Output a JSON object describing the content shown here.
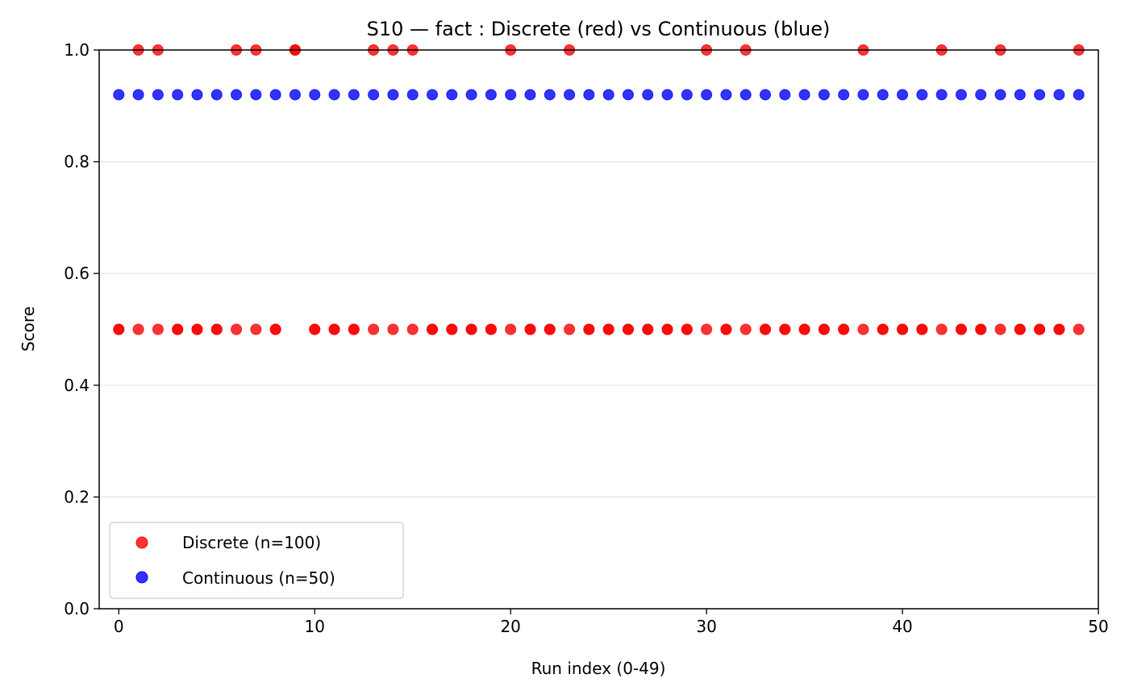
{
  "chart_data": {
    "type": "scatter",
    "title": "S10 — fact : Discrete (red) vs Continuous (blue)",
    "xlabel": "Run index (0-49)",
    "ylabel": "Score",
    "xlim": [
      -1,
      50
    ],
    "ylim": [
      0,
      1
    ],
    "xticks": [
      "0",
      "10",
      "20",
      "30",
      "40",
      "50"
    ],
    "yticks": [
      "0.0",
      "0.2",
      "0.4",
      "0.6",
      "0.8",
      "1.0"
    ],
    "grid": "y-only",
    "legend_position": "lower-left",
    "series": [
      {
        "name": "Discrete (n=100)",
        "color": "#ff0000",
        "points": [
          [
            0,
            0.5
          ],
          [
            0,
            0.5
          ],
          [
            1,
            1.0
          ],
          [
            1,
            0.5
          ],
          [
            2,
            1.0
          ],
          [
            2,
            0.5
          ],
          [
            3,
            0.5
          ],
          [
            3,
            0.5
          ],
          [
            4,
            0.5
          ],
          [
            4,
            0.5
          ],
          [
            5,
            0.5
          ],
          [
            5,
            0.5
          ],
          [
            6,
            1.0
          ],
          [
            6,
            0.5
          ],
          [
            7,
            1.0
          ],
          [
            7,
            0.5
          ],
          [
            8,
            0.5
          ],
          [
            8,
            0.5
          ],
          [
            9,
            1.0
          ],
          [
            9,
            1.0
          ],
          [
            10,
            0.5
          ],
          [
            10,
            0.5
          ],
          [
            11,
            0.5
          ],
          [
            11,
            0.5
          ],
          [
            12,
            0.5
          ],
          [
            12,
            0.5
          ],
          [
            13,
            1.0
          ],
          [
            13,
            0.5
          ],
          [
            14,
            1.0
          ],
          [
            14,
            0.5
          ],
          [
            15,
            1.0
          ],
          [
            15,
            0.5
          ],
          [
            16,
            0.5
          ],
          [
            16,
            0.5
          ],
          [
            17,
            0.5
          ],
          [
            17,
            0.5
          ],
          [
            18,
            0.5
          ],
          [
            18,
            0.5
          ],
          [
            19,
            0.5
          ],
          [
            19,
            0.5
          ],
          [
            20,
            1.0
          ],
          [
            20,
            0.5
          ],
          [
            21,
            0.5
          ],
          [
            21,
            0.5
          ],
          [
            22,
            0.5
          ],
          [
            22,
            0.5
          ],
          [
            23,
            1.0
          ],
          [
            23,
            0.5
          ],
          [
            24,
            0.5
          ],
          [
            24,
            0.5
          ],
          [
            25,
            0.5
          ],
          [
            25,
            0.5
          ],
          [
            26,
            0.5
          ],
          [
            26,
            0.5
          ],
          [
            27,
            0.5
          ],
          [
            27,
            0.5
          ],
          [
            28,
            0.5
          ],
          [
            28,
            0.5
          ],
          [
            29,
            0.5
          ],
          [
            29,
            0.5
          ],
          [
            30,
            1.0
          ],
          [
            30,
            0.5
          ],
          [
            31,
            0.5
          ],
          [
            31,
            0.5
          ],
          [
            32,
            1.0
          ],
          [
            32,
            0.5
          ],
          [
            33,
            0.5
          ],
          [
            33,
            0.5
          ],
          [
            34,
            0.5
          ],
          [
            34,
            0.5
          ],
          [
            35,
            0.5
          ],
          [
            35,
            0.5
          ],
          [
            36,
            0.5
          ],
          [
            36,
            0.5
          ],
          [
            37,
            0.5
          ],
          [
            37,
            0.5
          ],
          [
            38,
            1.0
          ],
          [
            38,
            0.5
          ],
          [
            39,
            0.5
          ],
          [
            39,
            0.5
          ],
          [
            40,
            0.5
          ],
          [
            40,
            0.5
          ],
          [
            41,
            0.5
          ],
          [
            41,
            0.5
          ],
          [
            42,
            1.0
          ],
          [
            42,
            0.5
          ],
          [
            43,
            0.5
          ],
          [
            43,
            0.5
          ],
          [
            44,
            0.5
          ],
          [
            44,
            0.5
          ],
          [
            45,
            1.0
          ],
          [
            45,
            0.5
          ],
          [
            46,
            0.5
          ],
          [
            46,
            0.5
          ],
          [
            47,
            0.5
          ],
          [
            47,
            0.5
          ],
          [
            48,
            0.5
          ],
          [
            48,
            0.5
          ],
          [
            49,
            1.0
          ],
          [
            49,
            0.5
          ]
        ]
      },
      {
        "name": "Continuous (n=50)",
        "color": "#0000ff",
        "points": [
          [
            0,
            0.92
          ],
          [
            1,
            0.92
          ],
          [
            2,
            0.92
          ],
          [
            3,
            0.92
          ],
          [
            4,
            0.92
          ],
          [
            5,
            0.92
          ],
          [
            6,
            0.92
          ],
          [
            7,
            0.92
          ],
          [
            8,
            0.92
          ],
          [
            9,
            0.92
          ],
          [
            10,
            0.92
          ],
          [
            11,
            0.92
          ],
          [
            12,
            0.92
          ],
          [
            13,
            0.92
          ],
          [
            14,
            0.92
          ],
          [
            15,
            0.92
          ],
          [
            16,
            0.92
          ],
          [
            17,
            0.92
          ],
          [
            18,
            0.92
          ],
          [
            19,
            0.92
          ],
          [
            20,
            0.92
          ],
          [
            21,
            0.92
          ],
          [
            22,
            0.92
          ],
          [
            23,
            0.92
          ],
          [
            24,
            0.92
          ],
          [
            25,
            0.92
          ],
          [
            26,
            0.92
          ],
          [
            27,
            0.92
          ],
          [
            28,
            0.92
          ],
          [
            29,
            0.92
          ],
          [
            30,
            0.92
          ],
          [
            31,
            0.92
          ],
          [
            32,
            0.92
          ],
          [
            33,
            0.92
          ],
          [
            34,
            0.92
          ],
          [
            35,
            0.92
          ],
          [
            36,
            0.92
          ],
          [
            37,
            0.92
          ],
          [
            38,
            0.92
          ],
          [
            39,
            0.92
          ],
          [
            40,
            0.92
          ],
          [
            41,
            0.92
          ],
          [
            42,
            0.92
          ],
          [
            43,
            0.92
          ],
          [
            44,
            0.92
          ],
          [
            45,
            0.92
          ],
          [
            46,
            0.92
          ],
          [
            47,
            0.92
          ],
          [
            48,
            0.92
          ],
          [
            49,
            0.92
          ]
        ]
      }
    ]
  }
}
